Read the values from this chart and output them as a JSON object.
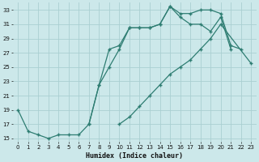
{
  "xlabel": "Humidex (Indice chaleur)",
  "bg_color": "#cce8ea",
  "grid_color": "#aacfd2",
  "line_color": "#2e7d72",
  "xlim": [
    -0.5,
    23.5
  ],
  "ylim": [
    14.5,
    34.0
  ],
  "xticks": [
    0,
    1,
    2,
    3,
    4,
    5,
    6,
    7,
    8,
    9,
    10,
    11,
    12,
    13,
    14,
    15,
    16,
    17,
    18,
    19,
    20,
    21,
    22,
    23
  ],
  "yticks": [
    15,
    17,
    19,
    21,
    23,
    25,
    27,
    29,
    31,
    33
  ],
  "line1_x": [
    0,
    1,
    2,
    3,
    4,
    5,
    6,
    7,
    8,
    9,
    10,
    11,
    12,
    13,
    14,
    15,
    16,
    17,
    18,
    19,
    20,
    21,
    22
  ],
  "line1_y": [
    19,
    16,
    15.5,
    15,
    15.5,
    15.5,
    15.5,
    17,
    22.5,
    27.5,
    28,
    30.5,
    30.5,
    30.5,
    31,
    33.5,
    32.5,
    32.5,
    33,
    33,
    32.5,
    28,
    27.5
  ],
  "line2_x": [
    7,
    8,
    9,
    10,
    11,
    12,
    13,
    14,
    15,
    16,
    17,
    18,
    19,
    20,
    21
  ],
  "line2_y": [
    17,
    22.5,
    25,
    27.5,
    30.5,
    30.5,
    30.5,
    31,
    33.5,
    32,
    31,
    31,
    30,
    32,
    27.5
  ],
  "line3_x": [
    10,
    11,
    12,
    13,
    14,
    15,
    16,
    17,
    18,
    19,
    20,
    23
  ],
  "line3_y": [
    17,
    18,
    19.5,
    21,
    22.5,
    24,
    25,
    26,
    27.5,
    29,
    31,
    25.5
  ]
}
